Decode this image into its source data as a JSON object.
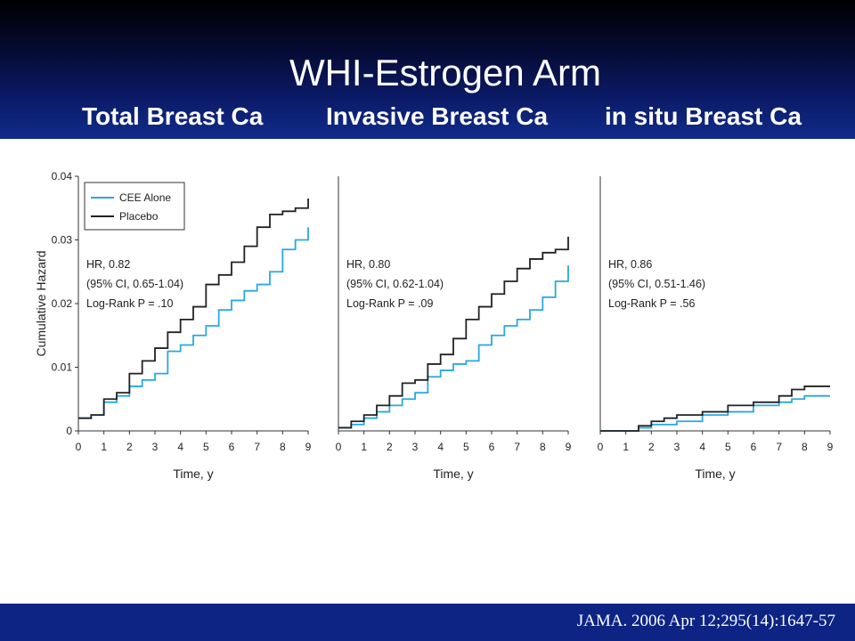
{
  "slide": {
    "title": "WHI-Estrogen Arm",
    "subtitles": [
      "Total Breast Ca",
      "Invasive Breast Ca",
      "in situ Breast Ca"
    ],
    "citation": "JAMA. 2006 Apr 12;295(14):1647-57",
    "header_color": "#0b1a66",
    "footer_color": "#0d2484"
  },
  "chart_data": [
    {
      "type": "line",
      "ylabel": "Cumulative Hazard",
      "xlabel": "Time, y",
      "xlim": [
        0,
        9
      ],
      "ylim": [
        0,
        0.04
      ],
      "xticks": [
        "0",
        "1",
        "2",
        "3",
        "4",
        "5",
        "6",
        "7",
        "8",
        "9"
      ],
      "yticks": [
        "0",
        "0.01",
        "0.02",
        "0.03",
        "0.04"
      ],
      "legend": [
        "CEE Alone",
        "Placebo"
      ],
      "legend_placement": "top-left",
      "stats": [
        "HR, 0.82",
        "(95% CI, 0.65-1.04)",
        "Log-Rank P = .10"
      ],
      "series": [
        {
          "name": "CEE Alone",
          "color": "#29a8e0",
          "x": [
            0,
            0.5,
            1,
            1.5,
            2,
            2.5,
            3,
            3.5,
            4,
            4.5,
            5,
            5.5,
            6,
            6.5,
            7,
            7.5,
            8,
            8.5,
            9
          ],
          "y": [
            0.002,
            0.0025,
            0.0045,
            0.0055,
            0.007,
            0.008,
            0.009,
            0.0125,
            0.0135,
            0.015,
            0.0165,
            0.019,
            0.0205,
            0.022,
            0.023,
            0.025,
            0.0285,
            0.03,
            0.032
          ]
        },
        {
          "name": "Placebo",
          "color": "#222222",
          "x": [
            0,
            0.5,
            1,
            1.5,
            2,
            2.5,
            3,
            3.5,
            4,
            4.5,
            5,
            5.5,
            6,
            6.5,
            7,
            7.5,
            8,
            8.5,
            9
          ],
          "y": [
            0.002,
            0.0025,
            0.005,
            0.006,
            0.009,
            0.011,
            0.013,
            0.0155,
            0.0175,
            0.0195,
            0.023,
            0.0245,
            0.0265,
            0.029,
            0.032,
            0.034,
            0.0345,
            0.035,
            0.0365
          ]
        }
      ]
    },
    {
      "type": "line",
      "xlabel": "Time, y",
      "xlim": [
        0,
        9
      ],
      "ylim": [
        0,
        0.04
      ],
      "xticks": [
        "0",
        "1",
        "2",
        "3",
        "4",
        "5",
        "6",
        "7",
        "8",
        "9"
      ],
      "stats": [
        "HR, 0.80",
        "(95% CI, 0.62-1.04)",
        "Log-Rank P = .09"
      ],
      "series": [
        {
          "name": "CEE Alone",
          "color": "#29a8e0",
          "x": [
            0,
            0.5,
            1,
            1.5,
            2,
            2.5,
            3,
            3.5,
            4,
            4.5,
            5,
            5.5,
            6,
            6.5,
            7,
            7.5,
            8,
            8.5,
            9
          ],
          "y": [
            0.0005,
            0.001,
            0.002,
            0.003,
            0.004,
            0.005,
            0.006,
            0.0085,
            0.0095,
            0.0105,
            0.011,
            0.0135,
            0.015,
            0.0165,
            0.0175,
            0.019,
            0.021,
            0.0235,
            0.026
          ]
        },
        {
          "name": "Placebo",
          "color": "#222222",
          "x": [
            0,
            0.5,
            1,
            1.5,
            2,
            2.5,
            3,
            3.5,
            4,
            4.5,
            5,
            5.5,
            6,
            6.5,
            7,
            7.5,
            8,
            8.5,
            9
          ],
          "y": [
            0.0005,
            0.0015,
            0.0025,
            0.004,
            0.0055,
            0.0075,
            0.008,
            0.0105,
            0.012,
            0.0145,
            0.0175,
            0.0195,
            0.0215,
            0.0235,
            0.0255,
            0.027,
            0.028,
            0.0285,
            0.0305
          ]
        }
      ]
    },
    {
      "type": "line",
      "xlabel": "Time, y",
      "xlim": [
        0,
        9
      ],
      "ylim": [
        0,
        0.04
      ],
      "xticks": [
        "0",
        "1",
        "2",
        "3",
        "4",
        "5",
        "6",
        "7",
        "8",
        "9"
      ],
      "stats": [
        "HR, 0.86",
        "(95% CI, 0.51-1.46)",
        "Log-Rank P = .56"
      ],
      "series": [
        {
          "name": "CEE Alone",
          "color": "#29a8e0",
          "x": [
            0,
            1,
            1.5,
            2,
            3,
            4,
            5,
            6,
            7,
            7.5,
            8,
            9
          ],
          "y": [
            0,
            0,
            0.0005,
            0.001,
            0.0015,
            0.0025,
            0.003,
            0.004,
            0.0045,
            0.005,
            0.0055,
            0.0055
          ]
        },
        {
          "name": "Placebo",
          "color": "#222222",
          "x": [
            0,
            1,
            1.5,
            2,
            2.5,
            3,
            4,
            5,
            6,
            7,
            7.5,
            8,
            9
          ],
          "y": [
            0,
            0,
            0.0008,
            0.0015,
            0.002,
            0.0025,
            0.003,
            0.004,
            0.0045,
            0.0055,
            0.0065,
            0.007,
            0.007
          ]
        }
      ]
    }
  ]
}
